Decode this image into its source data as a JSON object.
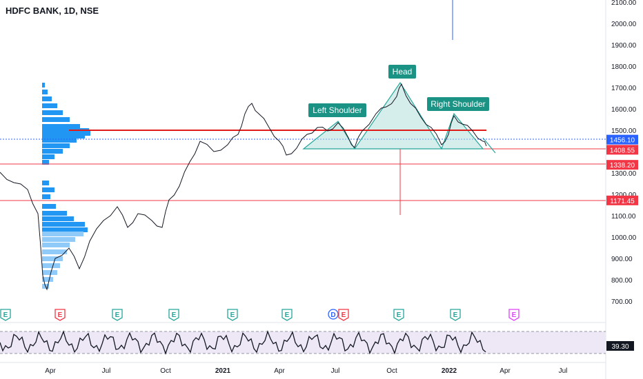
{
  "header": {
    "title": "HDFC BANK, 1D, NSE"
  },
  "price_axis": {
    "ticks": [
      "2100.00",
      "2000.00",
      "1900.00",
      "1800.00",
      "1700.00",
      "1600.00",
      "1500.00",
      "1300.00",
      "1200.00",
      "1100.00",
      "1000.00",
      "900.00",
      "800.00",
      "700.00"
    ],
    "tick_values": [
      2100,
      2000,
      1900,
      1800,
      1700,
      1600,
      1500,
      1300,
      1200,
      1100,
      1000,
      900,
      800,
      700
    ]
  },
  "price_tags": [
    {
      "label": "1456.10",
      "value": 1456.1,
      "color": "#2962ff"
    },
    {
      "label": "1408.55",
      "value": 1408.55,
      "color": "#f23645"
    },
    {
      "label": "1338.20",
      "value": 1338.2,
      "color": "#f23645"
    },
    {
      "label": "1171.45",
      "value": 1171.45,
      "color": "#f23645"
    }
  ],
  "time_axis": {
    "labels": [
      "Apr",
      "Jul",
      "Oct",
      "2021",
      "Apr",
      "Jul",
      "Oct",
      "2022",
      "Apr",
      "Jul"
    ]
  },
  "annotations": [
    {
      "id": "left-shoulder",
      "text": "Left Shoulder"
    },
    {
      "id": "head",
      "text": "Head"
    },
    {
      "id": "right-shoulder",
      "text": "Right Shoulder"
    }
  ],
  "events": [
    "E",
    "E",
    "E",
    "E",
    "E",
    "E",
    "D",
    "E",
    "E",
    "E",
    "E"
  ],
  "oscillator": {
    "value_label": "39.30",
    "value": 39.3
  },
  "colors": {
    "bull": "#26a69a",
    "accent_blue": "#2962ff",
    "red": "#f23645",
    "teal_fill": "#b2dfdb",
    "volume_profile": "#2196f3",
    "osc_band": "#ede7f6"
  }
}
